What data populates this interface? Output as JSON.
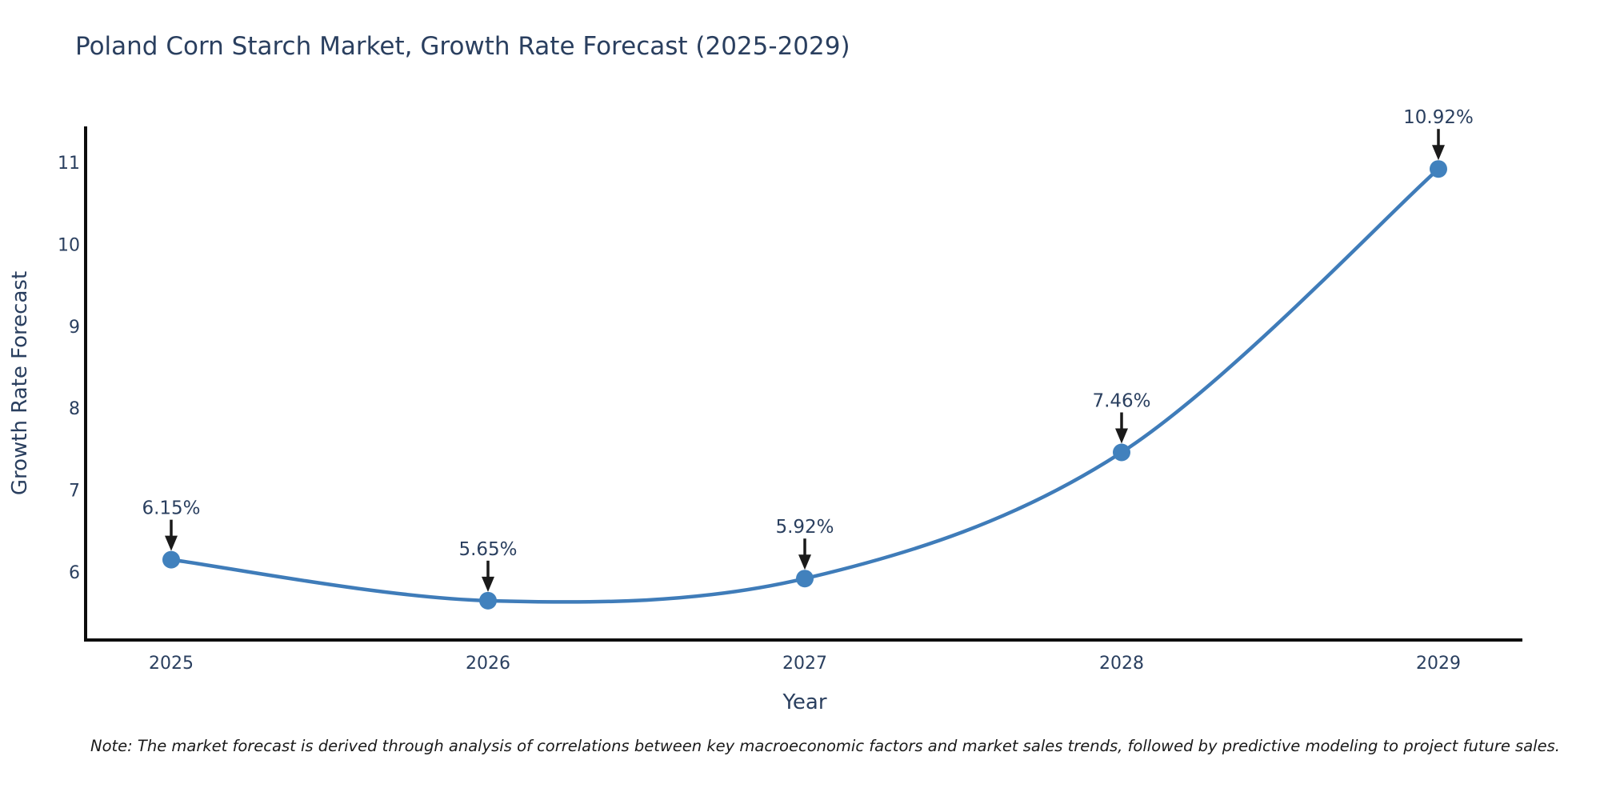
{
  "header": {
    "title": "Poland Corn Starch Market, Growth Rate Forecast (2025-2029)"
  },
  "note": {
    "text": "Note: The market forecast is derived through analysis of correlations between key macroeconomic factors and market sales trends, followed by predictive modeling to project future sales."
  },
  "chart_data": {
    "type": "line",
    "title": "Poland Corn Starch Market, Growth Rate Forecast (2025-2029)",
    "categories": [
      "2025",
      "2026",
      "2027",
      "2028",
      "2029"
    ],
    "series": [
      {
        "name": "Growth Rate Forecast",
        "values": [
          6.15,
          5.65,
          5.92,
          7.46,
          10.92
        ]
      }
    ],
    "point_labels": [
      "6.15%",
      "5.65%",
      "5.92%",
      "7.46%",
      "10.92%"
    ],
    "xlabel": "Year",
    "ylabel": "Growth Rate Forecast",
    "yticks": [
      6,
      7,
      8,
      9,
      10,
      11
    ],
    "ylim": [
      5.17,
      11.44
    ],
    "grid": false,
    "legend": "none",
    "line_shape": "spline",
    "annotations_have_arrows": true,
    "colors": {
      "line": "#3f7cb9",
      "marker": "#4181bd",
      "text": "#2a3f5f",
      "annotation_text": "#2a3f5f",
      "arrow": "#1a1a1a",
      "axis": "#0d0d0d",
      "background": "#ffffff"
    }
  }
}
